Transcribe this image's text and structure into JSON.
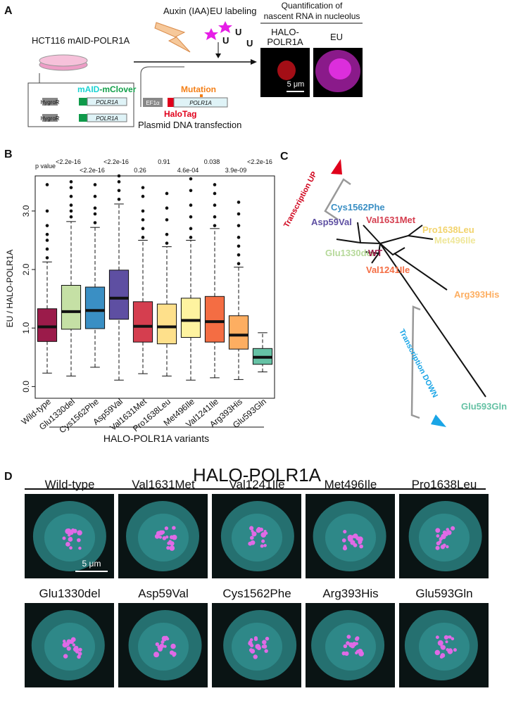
{
  "panel_a": {
    "label": "A",
    "treatment": "Auxin (IAA)",
    "labeling": "EU labeling",
    "uridine": "U",
    "quant_title": [
      "Quantification of",
      "nascent RNA in nucleolus"
    ],
    "image_label_halo": [
      "HALO-",
      "POLR1A"
    ],
    "image_label_eu": "EU",
    "scale_bar": "5 μm",
    "cell_line": "HCT116 mAID-POLR1A",
    "cassette_tag": [
      "mAID",
      "-mClover"
    ],
    "resistance": "HygroR",
    "gene": "POLR1A",
    "promoter": "EF1α",
    "mutation": "Mutation",
    "halotag": "HaloTag",
    "transfection": "Plasmid DNA transfection"
  },
  "chart_data": {
    "type": "box",
    "label": "B",
    "ylabel": "EU  / HALO-POLR1A",
    "xlabel": "HALO-POLR1A variants",
    "p_value_label": "p value",
    "categories": [
      "Wild-type",
      "Glu1330del",
      "Cys1562Phe",
      "Asp59Val",
      "Val1631Met",
      "Pro1638Leu",
      "Met496Ile",
      "Val1241Ile",
      "Arg393His",
      "Glu593Gln"
    ],
    "colors": [
      "#9b1b4a",
      "#c5e0a5",
      "#3a8fc4",
      "#5e4fa2",
      "#d53e4f",
      "#fee08b",
      "#fef3a0",
      "#f46d43",
      "#fdae61",
      "#66c2a5"
    ],
    "p_values": [
      null,
      "<2.2e-16",
      "<2.2e-16",
      "<2.2e-16",
      "0.26",
      "0.91",
      "4.6e-04",
      "0.038",
      "3.9e-09",
      "<2.2e-16"
    ],
    "boxes": [
      {
        "whisker_low": 0.23,
        "q1": 0.77,
        "median": 1.02,
        "q3": 1.33,
        "whisker_high": 2.13,
        "outliers": [
          2.2,
          2.35,
          2.5,
          2.6,
          2.75,
          3.0,
          3.45
        ]
      },
      {
        "whisker_low": 0.18,
        "q1": 0.98,
        "median": 1.28,
        "q3": 1.73,
        "whisker_high": 2.82,
        "outliers": [
          2.9,
          3.0,
          3.1,
          3.25,
          3.4,
          3.5
        ]
      },
      {
        "whisker_low": 0.33,
        "q1": 0.99,
        "median": 1.3,
        "q3": 1.7,
        "whisker_high": 2.72,
        "outliers": [
          2.8,
          2.95,
          3.05,
          3.25,
          3.45
        ]
      },
      {
        "whisker_low": 0.11,
        "q1": 1.15,
        "median": 1.51,
        "q3": 1.99,
        "whisker_high": 3.12,
        "outliers": [
          3.2,
          3.35,
          3.5,
          3.6
        ]
      },
      {
        "whisker_low": 0.22,
        "q1": 0.76,
        "median": 1.03,
        "q3": 1.45,
        "whisker_high": 2.5,
        "outliers": [
          2.55,
          2.7,
          2.85,
          3.0,
          3.25,
          3.4
        ]
      },
      {
        "whisker_low": 0.18,
        "q1": 0.73,
        "median": 1.02,
        "q3": 1.41,
        "whisker_high": 2.39,
        "outliers": [
          2.45,
          2.6,
          2.85,
          3.05,
          3.3
        ]
      },
      {
        "whisker_low": 0.11,
        "q1": 0.84,
        "median": 1.13,
        "q3": 1.51,
        "whisker_high": 2.5,
        "outliers": [
          2.55,
          2.7,
          2.9,
          3.1,
          3.35,
          3.55
        ]
      },
      {
        "whisker_low": 0.15,
        "q1": 0.76,
        "median": 1.11,
        "q3": 1.54,
        "whisker_high": 2.7,
        "outliers": [
          2.75,
          2.9,
          3.1,
          3.3,
          3.45
        ]
      },
      {
        "whisker_low": 0.12,
        "q1": 0.64,
        "median": 0.88,
        "q3": 1.21,
        "whisker_high": 2.04,
        "outliers": [
          2.1,
          2.25,
          2.4,
          2.55,
          2.75,
          2.95,
          3.15
        ]
      },
      {
        "whisker_low": 0.25,
        "q1": 0.38,
        "median": 0.5,
        "q3": 0.65,
        "whisker_high": 0.92,
        "outliers": []
      }
    ],
    "ylim": [
      -0.2,
      3.6
    ],
    "yticks": [
      {
        "value": 0,
        "label": "0.0"
      },
      {
        "value": 1,
        "label": "1.0"
      },
      {
        "value": 2,
        "label": "2.0"
      },
      {
        "value": 3,
        "label": "3.0"
      }
    ]
  },
  "panel_c": {
    "label": "C",
    "up": "Transcription UP",
    "down": "Transcription DOWN",
    "leaves": [
      "Cys1562Phe",
      "Asp59Val",
      "Val1631Met",
      "Pro1638Leu",
      "Met496Ile",
      "Glu1330del",
      "WT",
      "Val1241Ile",
      "Arg393His",
      "Glu593Gln"
    ]
  },
  "panel_d": {
    "label": "D",
    "title": "HALO-POLR1A",
    "tiles": [
      "Wild-type",
      "Val1631Met",
      "Val1241Ile",
      "Met496Ile",
      "Pro1638Leu",
      "Glu1330del",
      "Asp59Val",
      "Cys1562Phe",
      "Arg393His",
      "Glu593Gln"
    ],
    "scale_bar": "5 μm"
  }
}
